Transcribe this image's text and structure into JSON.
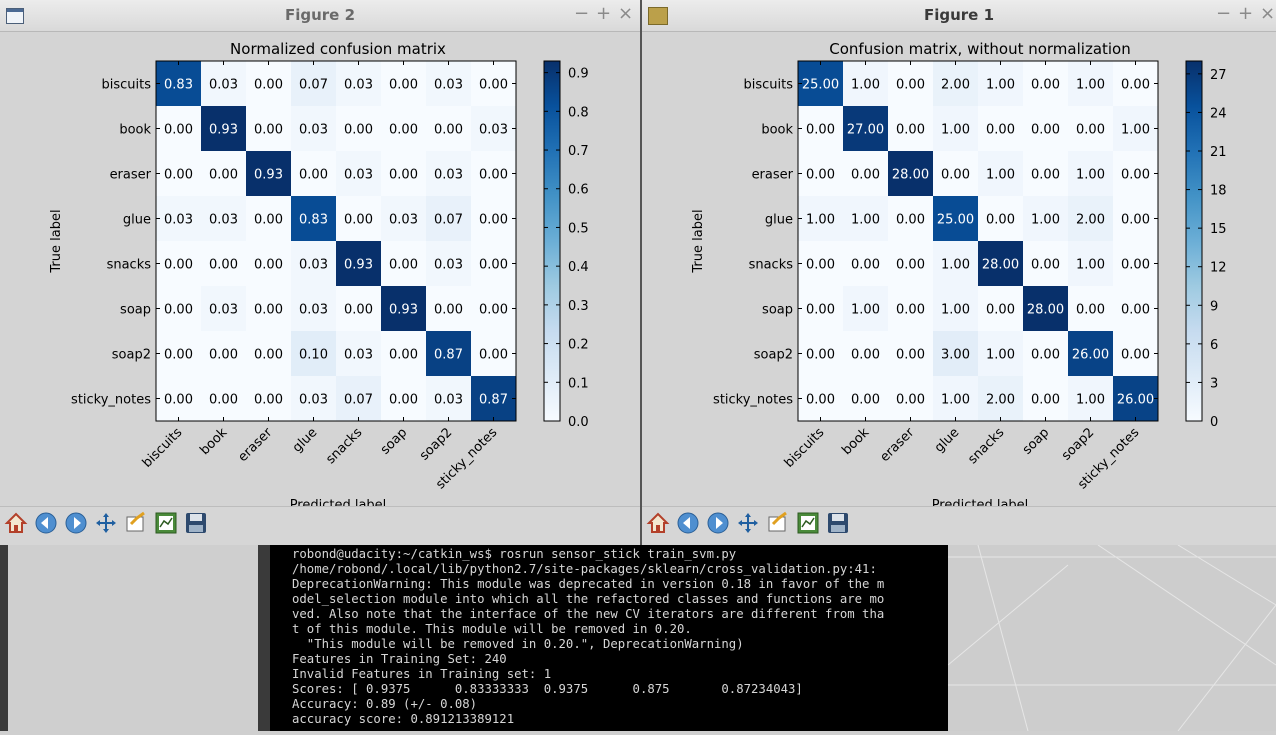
{
  "windows": {
    "figure2": {
      "title": "Figure 2"
    },
    "figure1": {
      "title": "Figure 1"
    }
  },
  "controls": {
    "minimize": "−",
    "maximize": "+",
    "close": "×"
  },
  "labels": {
    "categories": [
      "biscuits",
      "book",
      "eraser",
      "glue",
      "snacks",
      "soap",
      "soap2",
      "sticky_notes"
    ],
    "xlabel": "Predicted label",
    "ylabel": "True label"
  },
  "toolbar": {
    "icons": [
      "home-icon",
      "back-icon",
      "forward-icon",
      "pan-icon",
      "zoom-icon",
      "subplots-icon",
      "save-icon"
    ]
  },
  "chart_data": [
    {
      "type": "heatmap",
      "title": "Normalized confusion matrix",
      "xlabel": "Predicted label",
      "ylabel": "True label",
      "categories": [
        "biscuits",
        "book",
        "eraser",
        "glue",
        "snacks",
        "soap",
        "soap2",
        "sticky_notes"
      ],
      "values": [
        [
          0.83,
          0.03,
          0.0,
          0.07,
          0.03,
          0.0,
          0.03,
          0.0
        ],
        [
          0.0,
          0.93,
          0.0,
          0.03,
          0.0,
          0.0,
          0.0,
          0.03
        ],
        [
          0.0,
          0.0,
          0.93,
          0.0,
          0.03,
          0.0,
          0.03,
          0.0
        ],
        [
          0.03,
          0.03,
          0.0,
          0.83,
          0.0,
          0.03,
          0.07,
          0.0
        ],
        [
          0.0,
          0.0,
          0.0,
          0.03,
          0.93,
          0.0,
          0.03,
          0.0
        ],
        [
          0.0,
          0.03,
          0.0,
          0.03,
          0.0,
          0.93,
          0.0,
          0.0
        ],
        [
          0.0,
          0.0,
          0.0,
          0.1,
          0.03,
          0.0,
          0.87,
          0.0
        ],
        [
          0.0,
          0.0,
          0.0,
          0.03,
          0.07,
          0.0,
          0.03,
          0.87
        ]
      ],
      "colorbar": {
        "min": 0.0,
        "max": 0.93,
        "ticks": [
          "0.0",
          "0.1",
          "0.2",
          "0.3",
          "0.4",
          "0.5",
          "0.6",
          "0.7",
          "0.8",
          "0.9"
        ],
        "tick_values": [
          0,
          0.1,
          0.2,
          0.3,
          0.4,
          0.5,
          0.6,
          0.7,
          0.8,
          0.9
        ]
      },
      "colormap": [
        "#f7fbff",
        "#08306b"
      ]
    },
    {
      "type": "heatmap",
      "title": "Confusion matrix, without normalization",
      "xlabel": "Predicted label",
      "ylabel": "True label",
      "categories": [
        "biscuits",
        "book",
        "eraser",
        "glue",
        "snacks",
        "soap",
        "soap2",
        "sticky_notes"
      ],
      "values": [
        [
          25,
          1,
          0,
          2,
          1,
          0,
          1,
          0
        ],
        [
          0,
          27,
          0,
          1,
          0,
          0,
          0,
          1
        ],
        [
          0,
          0,
          28,
          0,
          1,
          0,
          1,
          0
        ],
        [
          1,
          1,
          0,
          25,
          0,
          1,
          2,
          0
        ],
        [
          0,
          0,
          0,
          1,
          28,
          0,
          1,
          0
        ],
        [
          0,
          1,
          0,
          1,
          0,
          28,
          0,
          0
        ],
        [
          0,
          0,
          0,
          3,
          1,
          0,
          26,
          0
        ],
        [
          0,
          0,
          0,
          1,
          2,
          0,
          1,
          26
        ]
      ],
      "value_labels": [
        [
          "25.00",
          "1.00",
          "0.00",
          "2.00",
          "1.00",
          "0.00",
          "1.00",
          "0.00"
        ],
        [
          "0.00",
          "27.00",
          "0.00",
          "1.00",
          "0.00",
          "0.00",
          "0.00",
          "1.00"
        ],
        [
          "0.00",
          "0.00",
          "28.00",
          "0.00",
          "1.00",
          "0.00",
          "1.00",
          "0.00"
        ],
        [
          "1.00",
          "1.00",
          "0.00",
          "25.00",
          "0.00",
          "1.00",
          "2.00",
          "0.00"
        ],
        [
          "0.00",
          "0.00",
          "0.00",
          "1.00",
          "28.00",
          "0.00",
          "1.00",
          "0.00"
        ],
        [
          "0.00",
          "1.00",
          "0.00",
          "1.00",
          "0.00",
          "28.00",
          "0.00",
          "0.00"
        ],
        [
          "0.00",
          "0.00",
          "0.00",
          "3.00",
          "1.00",
          "0.00",
          "26.00",
          "0.00"
        ],
        [
          "0.00",
          "0.00",
          "0.00",
          "1.00",
          "2.00",
          "0.00",
          "1.00",
          "26.00"
        ]
      ],
      "colorbar": {
        "min": 0,
        "max": 28,
        "ticks": [
          "0",
          "3",
          "6",
          "9",
          "12",
          "15",
          "18",
          "21",
          "24",
          "27"
        ],
        "tick_values": [
          0,
          3,
          6,
          9,
          12,
          15,
          18,
          21,
          24,
          27
        ]
      },
      "colormap": [
        "#f7fbff",
        "#08306b"
      ]
    }
  ],
  "terminal": {
    "lines": [
      "robond@udacity:~/catkin_ws$ rosrun sensor_stick train_svm.py",
      "/home/robond/.local/lib/python2.7/site-packages/sklearn/cross_validation.py:41:",
      "DeprecationWarning: This module was deprecated in version 0.18 in favor of the m",
      "odel_selection module into which all the refactored classes and functions are mo",
      "ved. Also note that the interface of the new CV iterators are different from tha",
      "t of this module. This module will be removed in 0.20.",
      "  \"This module will be removed in 0.20.\", DeprecationWarning)",
      "Features in Training Set: 240",
      "Invalid Features in Training set: 1",
      "Scores: [ 0.9375      0.83333333  0.9375      0.875       0.87234043]",
      "Accuracy: 0.89 (+/- 0.08)",
      "accuracy score: 0.891213389121"
    ]
  }
}
